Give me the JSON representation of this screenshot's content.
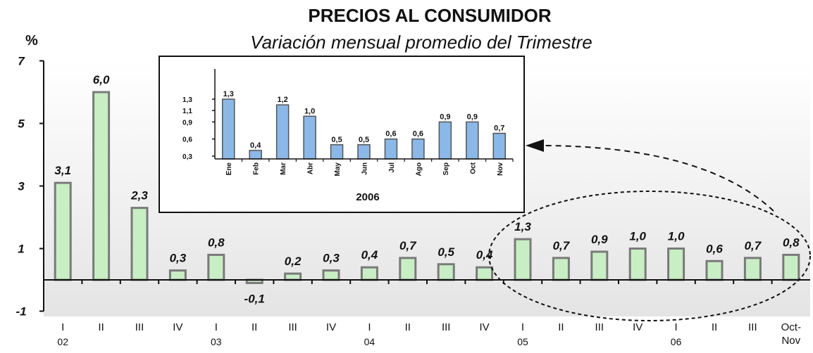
{
  "chart_data": [
    {
      "type": "bar",
      "title": "PRECIOS AL CONSUMIDOR",
      "subtitle": "Variación mensual promedio del Trimestre",
      "ylabel": "%",
      "ylim": [
        -1,
        7
      ],
      "yticks": [
        "7",
        "5",
        "3",
        "1",
        "-1"
      ],
      "ytick_values": [
        7,
        5,
        3,
        1,
        -1
      ],
      "categories": [
        "I",
        "II",
        "III",
        "IV",
        "I",
        "II",
        "III",
        "IV",
        "I",
        "II",
        "III",
        "IV",
        "I",
        "II",
        "III",
        "IV",
        "I",
        "II",
        "III",
        "Oct-Nov"
      ],
      "year_labels": [
        "02",
        "",
        "",
        "",
        "03",
        "",
        "",
        "",
        "04",
        "",
        "",
        "",
        "05",
        "",
        "",
        "",
        "06",
        "",
        "",
        ""
      ],
      "values": [
        3.1,
        6.0,
        2.3,
        0.3,
        0.8,
        -0.1,
        0.2,
        0.3,
        0.4,
        0.7,
        0.5,
        0.4,
        1.3,
        0.7,
        0.9,
        1.0,
        1.0,
        0.6,
        0.7,
        0.8
      ],
      "labels": [
        "3,1",
        "6,0",
        "2,3",
        "0,3",
        "0,8",
        "-0,1",
        "0,2",
        "0,3",
        "0,4",
        "0,7",
        "0,5",
        "0,4",
        "1,3",
        "0,7",
        "0,9",
        "1,0",
        "1,0",
        "0,6",
        "0,7",
        "0,8"
      ],
      "bar_color": "#c8efc4",
      "bar_edge_color": "#7a7a7a",
      "grid": false,
      "background_gradient": [
        "#ffffff",
        "#e6e6e6"
      ]
    },
    {
      "type": "bar",
      "xlabel": "2006",
      "ylim": [
        0.2,
        1.4
      ],
      "yticks": [
        "1,3",
        "1,1",
        "0,9",
        "0,6",
        "0,3"
      ],
      "ytick_values": [
        1.3,
        1.1,
        0.9,
        0.6,
        0.3
      ],
      "categories": [
        "Ene",
        "Feb",
        "Mar",
        "Abr",
        "May",
        "Jun",
        "Jul",
        "Ago",
        "Sep",
        "Oct",
        "Nov"
      ],
      "values": [
        1.3,
        0.4,
        1.2,
        1.0,
        0.5,
        0.5,
        0.6,
        0.6,
        0.9,
        0.9,
        0.7
      ],
      "labels": [
        "1,3",
        "0,4",
        "1,2",
        "1,0",
        "0,5",
        "0,5",
        "0,6",
        "0,6",
        "0,9",
        "0,9",
        "0,7"
      ],
      "bar_color": "#8ab8e8",
      "bar_edge_color": "#555555",
      "grid": false
    }
  ]
}
